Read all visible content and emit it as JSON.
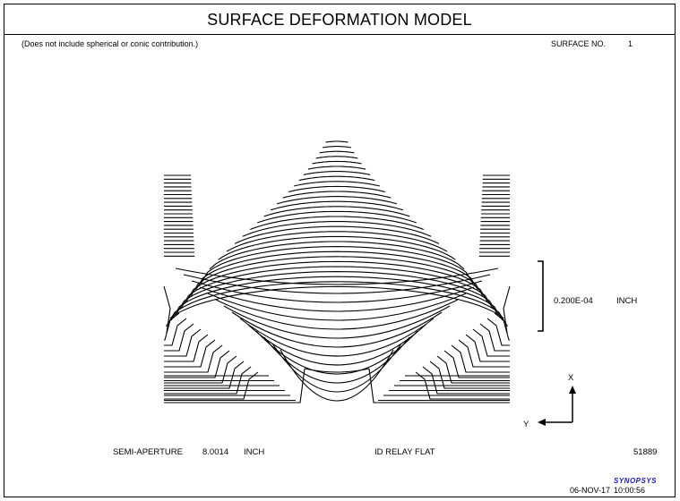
{
  "header": {
    "title": "SURFACE DEFORMATION MODEL"
  },
  "note": "(Does not include spherical or conic contribution.)",
  "surface": {
    "label": "SURFACE NO.",
    "number": "1"
  },
  "scale_bar": {
    "value": "0.200E-04",
    "unit": "INCH"
  },
  "axes": {
    "x": "X",
    "y": "Y"
  },
  "footer": {
    "semi_aperture_label": "SEMI-APERTURE",
    "semi_aperture_value": "8.0014",
    "semi_aperture_unit": "INCH",
    "part_name": "ID RELAY FLAT",
    "id_number": "51889",
    "brand": "SYNOPSYS",
    "date": "06-NOV-17",
    "time": "10:00:56"
  },
  "colors": {
    "ink": "#000000",
    "background": "#ffffff",
    "brand": "#1a1aa6"
  }
}
